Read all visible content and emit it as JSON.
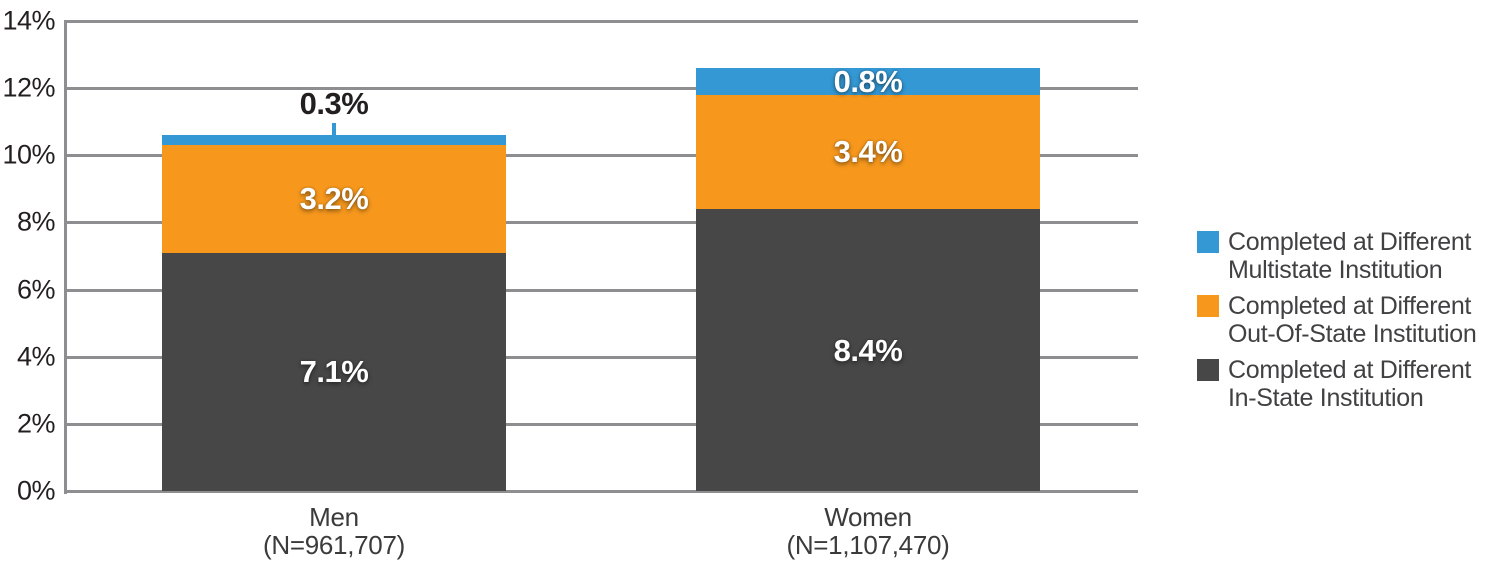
{
  "chart_data": {
    "type": "bar",
    "stacked": true,
    "title": "",
    "xlabel": "",
    "ylabel": "",
    "ylim": [
      0,
      14
    ],
    "ytick_labels": [
      "0%",
      "2%",
      "4%",
      "6%",
      "8%",
      "10%",
      "12%",
      "14%"
    ],
    "grid": true,
    "legend_position": "right",
    "categories": [
      {
        "key": "men",
        "label": "Men",
        "sublabel": "(N=961,707)"
      },
      {
        "key": "women",
        "label": "Women",
        "sublabel": "(N=1,107,470)"
      }
    ],
    "series": [
      {
        "key": "in-state",
        "name": "Completed at Different In-State Institution",
        "color": "#474747",
        "values": [
          7.1,
          8.4
        ],
        "value_labels": [
          "7.1%",
          "8.4%"
        ]
      },
      {
        "key": "out-of-state",
        "name": "Completed at Different Out-Of-State Institution",
        "color": "#F7981D",
        "values": [
          3.2,
          3.4
        ],
        "value_labels": [
          "3.2%",
          "3.4%"
        ]
      },
      {
        "key": "multistate",
        "name": "Completed at Different Multistate Institution",
        "color": "#3498D4",
        "values": [
          0.3,
          0.8
        ],
        "value_labels": [
          "0.3%",
          "0.8%"
        ]
      }
    ],
    "legend": [
      {
        "key": "multistate",
        "color": "#3498D4",
        "lines": [
          "Completed at Different",
          "Multistate Institution"
        ]
      },
      {
        "key": "out-of-state",
        "color": "#F7981D",
        "lines": [
          "Completed at Different",
          "Out-Of-State Institution"
        ]
      },
      {
        "key": "in-state",
        "color": "#474747",
        "lines": [
          "Completed at Different",
          "In-State Institution"
        ]
      }
    ],
    "colors": {
      "grid": "#8E8E90",
      "axis": "#8E8E90",
      "tick_text": "#231F20",
      "category_text": "#3B3B3C",
      "legend_text": "#414042",
      "value_label_light": "#FFFFFF",
      "value_label_dark": "#231F20"
    }
  }
}
